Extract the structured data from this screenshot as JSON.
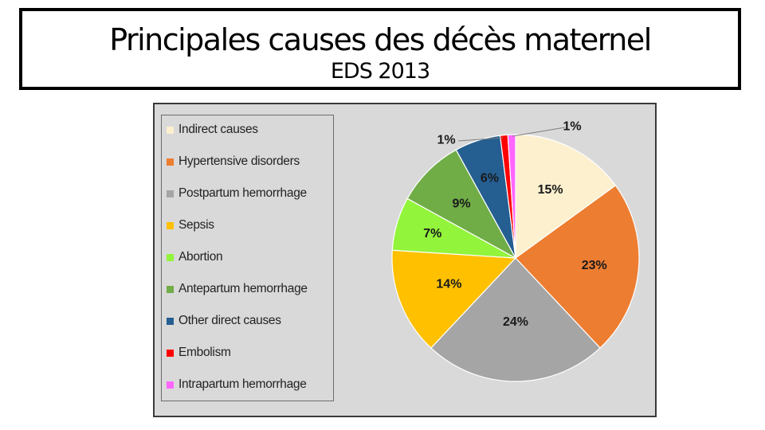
{
  "header": {
    "title": "Principales causes des décès maternel",
    "subtitle": "EDS 2013"
  },
  "chart_data": {
    "type": "pie",
    "title": "",
    "legend_position": "left",
    "slices": [
      {
        "label": "Indirect causes",
        "value": 15,
        "display": "15%",
        "color": "#fdf0cf"
      },
      {
        "label": "Hypertensive disorders",
        "value": 23,
        "display": "23%",
        "color": "#ed7d31"
      },
      {
        "label": "Postpartum hemorrhage",
        "value": 24,
        "display": "24%",
        "color": "#a5a5a5"
      },
      {
        "label": "Sepsis",
        "value": 14,
        "display": "14%",
        "color": "#ffc000"
      },
      {
        "label": "Abortion",
        "value": 7,
        "display": "7%",
        "color": "#92f43b"
      },
      {
        "label": "Antepartum hemorrhage",
        "value": 9,
        "display": "9%",
        "color": "#70ad47"
      },
      {
        "label": "Other direct causes",
        "value": 6,
        "display": "6%",
        "color": "#255e91"
      },
      {
        "label": "Embolism",
        "value": 1,
        "display": "1%",
        "color": "#ff0000"
      },
      {
        "label": "Intrapartum hemorrhage",
        "value": 1,
        "display": "1%",
        "color": "#ff66ff"
      }
    ]
  }
}
